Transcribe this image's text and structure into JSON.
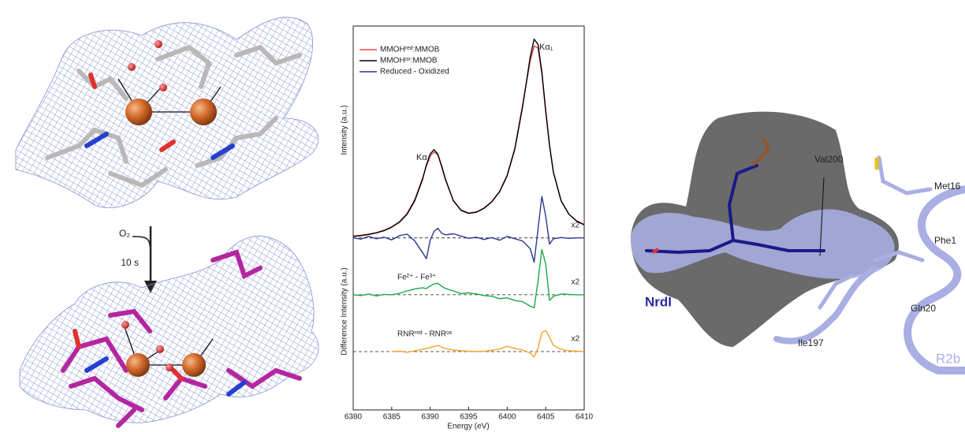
{
  "left_panel": {
    "reagent": "O₂",
    "time": "10 s"
  },
  "right_panel": {
    "labels": [
      "Val200",
      "Met16",
      "Phe1",
      "NrdI",
      "Gln20",
      "Ile197",
      "R2b"
    ]
  },
  "chart_data": {
    "type": "line",
    "xlabel": "Energy (eV)",
    "ylabel_upper": "Intensity (a.u.)",
    "ylabel_lower": "Difference Intensity (a.u.)",
    "annotations": [
      "Kα₂",
      "Kα₁"
    ],
    "xlim": [
      6380,
      6410
    ],
    "xticks": [
      6380,
      6385,
      6390,
      6395,
      6400,
      6405,
      6410
    ],
    "ylim": [
      0,
      100
    ],
    "legend": "upper left",
    "x": [
      6380,
      6381,
      6382,
      6383,
      6384,
      6385,
      6386,
      6387,
      6388,
      6389,
      6389.5,
      6390,
      6390.5,
      6391,
      6391.5,
      6392,
      6393,
      6394,
      6395,
      6396,
      6397,
      6398,
      6399,
      6400,
      6401,
      6402,
      6403,
      6403.5,
      6404,
      6404.5,
      6405,
      6405.5,
      6406,
      6407,
      6408,
      6409,
      6410
    ],
    "series": [
      {
        "name": "MMOHʳᵉᵈ:MMOB",
        "color": "#e8474a",
        "values": [
          45.3,
          45.5,
          45.8,
          46.2,
          46.8,
          47.7,
          49.0,
          51.2,
          54.8,
          60.3,
          63.5,
          66.2,
          67.2,
          66.4,
          63.2,
          59.8,
          54.6,
          52.1,
          51.3,
          51.6,
          52.6,
          54.3,
          56.9,
          61.2,
          68.3,
          79.5,
          91.0,
          94.8,
          94.3,
          87.5,
          77.6,
          68.8,
          61.8,
          54.4,
          51.0,
          49.3,
          48.3
        ]
      },
      {
        "name": "MMOHᵒˣ:MMOB",
        "color": "#000000",
        "values": [
          45.2,
          45.4,
          45.7,
          46.1,
          46.7,
          47.6,
          48.9,
          51.0,
          54.5,
          60.0,
          63.8,
          66.7,
          67.8,
          66.6,
          63.5,
          60.0,
          54.5,
          52.0,
          51.2,
          51.5,
          52.5,
          54.2,
          56.8,
          61.0,
          68.0,
          79.0,
          92.0,
          96.6,
          95.2,
          88.0,
          78.0,
          69.0,
          62.0,
          54.5,
          51.0,
          49.2,
          48.2
        ]
      },
      {
        "name": "Reduced - Oxidized",
        "color": "#2b3990",
        "baseline": 44.8,
        "multiplier_label": "x2",
        "values": [
          44.8,
          44.5,
          45.2,
          44.6,
          45.0,
          44.3,
          45.4,
          45.8,
          44.0,
          41.0,
          39.4,
          44.2,
          46.5,
          47.3,
          46.0,
          45.6,
          45.9,
          45.3,
          44.7,
          45.0,
          44.4,
          44.9,
          44.2,
          45.2,
          44.6,
          44.0,
          42.0,
          38.5,
          47.0,
          55.6,
          50.5,
          43.2,
          44.6,
          44.9,
          44.7,
          44.8,
          44.8
        ]
      },
      {
        "name": "Fe²⁺ - Fe³⁺",
        "color": "#1aa84a",
        "baseline": 30.0,
        "multiplier_label": "x2",
        "values": [
          30.0,
          29.8,
          30.2,
          29.7,
          30.1,
          30.0,
          30.4,
          31.0,
          31.5,
          31.8,
          31.6,
          32.3,
          32.8,
          33.0,
          32.2,
          31.6,
          31.0,
          30.3,
          30.5,
          30.2,
          29.8,
          29.6,
          29.0,
          29.2,
          28.5,
          28.2,
          27.0,
          26.6,
          33.5,
          41.8,
          38.0,
          28.5,
          29.6,
          30.2,
          30.1,
          30.0,
          30.0
        ]
      },
      {
        "name": "RNRʳᵉᵈ - RNRᵒˣ",
        "color": "#f7a128",
        "baseline": 15.2,
        "multiplier_label": "x2",
        "values": [
          null,
          null,
          null,
          null,
          null,
          15.2,
          15.3,
          15.0,
          15.4,
          15.8,
          16.0,
          16.2,
          16.5,
          16.8,
          16.4,
          16.0,
          15.6,
          15.4,
          15.3,
          15.2,
          15.3,
          15.5,
          15.9,
          16.6,
          16.0,
          15.6,
          14.8,
          13.8,
          16.0,
          20.2,
          20.7,
          19.0,
          16.8,
          15.8,
          15.4,
          15.3,
          15.2
        ]
      }
    ]
  }
}
